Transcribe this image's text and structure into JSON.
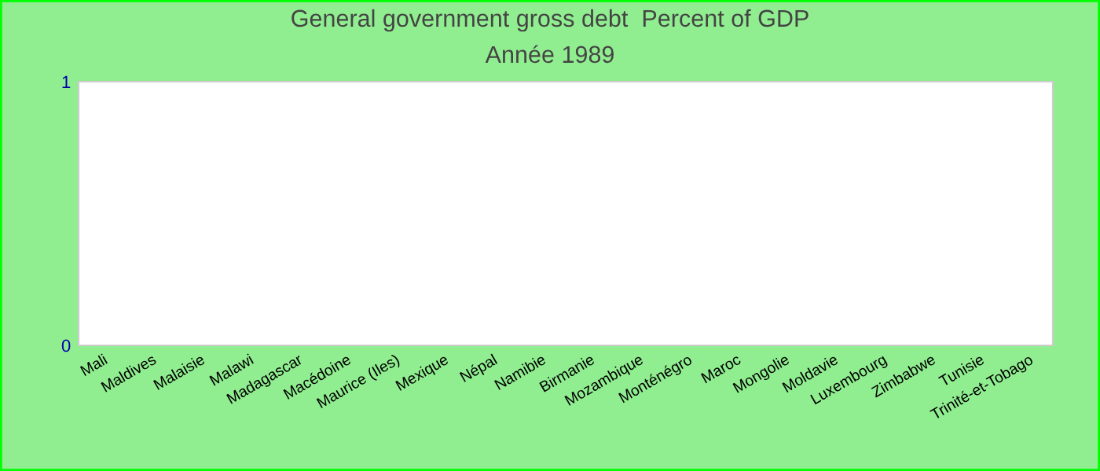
{
  "chart_data": {
    "type": "bar",
    "title": "General government gross debt  Percent of GDP",
    "subtitle": "Année 1989",
    "categories": [
      "Mali",
      "Maldives",
      "Malaisie",
      "Malawi",
      "Madagascar",
      "Macédoine",
      "Maurice (Iles)",
      "Mexique",
      "Népal",
      "Namibie",
      "Birmanie",
      "Mozambique",
      "Monténégro",
      "Maroc",
      "Mongolie",
      "Moldavie",
      "Luxembourg",
      "Zimbabwe",
      "Tunisie",
      "Trinité-et-Tobago"
    ],
    "values": [
      null,
      null,
      null,
      null,
      null,
      null,
      null,
      null,
      null,
      null,
      null,
      null,
      null,
      null,
      null,
      null,
      null,
      null,
      null,
      null
    ],
    "ylim": [
      0,
      1
    ],
    "yticks": [
      0,
      1
    ],
    "grid": false,
    "legend": false
  }
}
